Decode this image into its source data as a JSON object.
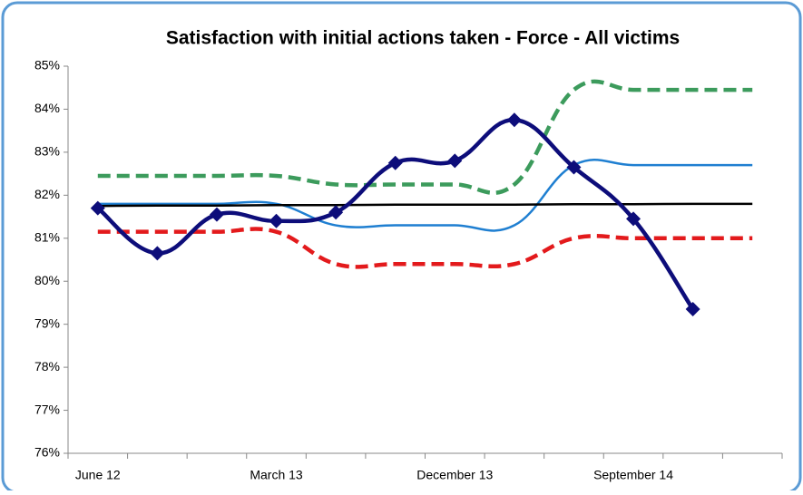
{
  "chart_data": {
    "type": "line",
    "title": "Satisfaction with initial actions taken - Force - All victims",
    "categories": [
      "June 12",
      null,
      null,
      "March 13",
      null,
      null,
      "December 13",
      null,
      null,
      "September 14",
      null,
      null
    ],
    "series": [
      {
        "color": "#3c9b5c",
        "dash": true,
        "width": 4.5,
        "values": [
          82.45,
          82.45,
          82.45,
          82.45,
          82.25,
          82.25,
          82.25,
          82.25,
          84.45,
          84.45,
          84.45,
          84.45
        ]
      },
      {
        "color": "#e31a1c",
        "dash": true,
        "width": 4.5,
        "values": [
          81.15,
          81.15,
          81.15,
          81.15,
          80.4,
          80.4,
          80.4,
          80.4,
          81.0,
          81.0,
          81.0,
          81.0
        ]
      },
      {
        "color": "#1f7fd1",
        "width": 2.5,
        "values": [
          81.8,
          81.8,
          81.8,
          81.8,
          81.3,
          81.3,
          81.3,
          81.3,
          82.7,
          82.7,
          82.7,
          82.7
        ]
      },
      {
        "color": "#000000",
        "width": 2.5,
        "values": [
          81.75,
          81.76,
          81.76,
          81.77,
          81.77,
          81.78,
          81.78,
          81.78,
          81.79,
          81.79,
          81.8,
          81.8
        ]
      },
      {
        "color": "#0d0d7a",
        "width": 4.5,
        "marker": "diamond",
        "values": [
          81.7,
          80.65,
          81.55,
          81.4,
          81.6,
          82.75,
          82.8,
          83.75,
          82.65,
          81.45,
          79.35,
          null
        ]
      }
    ],
    "ylim": [
      76,
      85
    ],
    "yticks": [
      {
        "value": 76,
        "label": "76%"
      },
      {
        "value": 77,
        "label": "77%"
      },
      {
        "value": 78,
        "label": "78%"
      },
      {
        "value": 79,
        "label": "79%"
      },
      {
        "value": 80,
        "label": "80%"
      },
      {
        "value": 81,
        "label": "81%"
      },
      {
        "value": 82,
        "label": "82%"
      },
      {
        "value": 83,
        "label": "83%"
      },
      {
        "value": 84,
        "label": "84%"
      },
      {
        "value": 85,
        "label": "85%"
      }
    ]
  }
}
